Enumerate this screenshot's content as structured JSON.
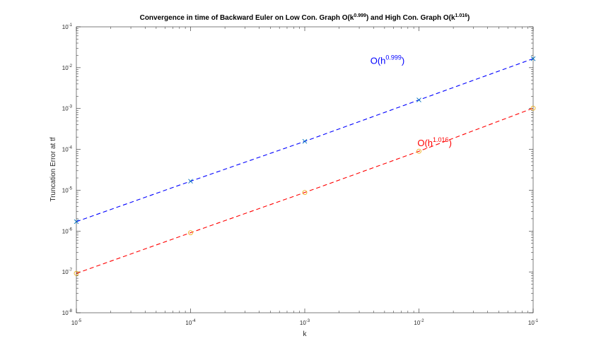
{
  "chart_data": {
    "type": "line",
    "title_prefix": "Convergence in time of Backward Euler on Low Con. Graph O(k",
    "title_exp1": "0.999",
    "title_middle": ") and High Con. Graph O(k",
    "title_exp2": "1.016",
    "title_suffix": ")",
    "xlabel": "k",
    "ylabel": "Truncation Error at tf",
    "xscale": "log",
    "yscale": "log",
    "xlim": [
      1e-05,
      0.1
    ],
    "ylim": [
      1e-08,
      0.1
    ],
    "grid": false,
    "x_ticks": [
      {
        "base": "10",
        "exp": "-5"
      },
      {
        "base": "10",
        "exp": "-4"
      },
      {
        "base": "10",
        "exp": "-3"
      },
      {
        "base": "10",
        "exp": "-2"
      },
      {
        "base": "10",
        "exp": "-1"
      }
    ],
    "y_ticks": [
      {
        "base": "10",
        "exp": "-8"
      },
      {
        "base": "10",
        "exp": "-7"
      },
      {
        "base": "10",
        "exp": "-6"
      },
      {
        "base": "10",
        "exp": "-5"
      },
      {
        "base": "10",
        "exp": "-4"
      },
      {
        "base": "10",
        "exp": "-3"
      },
      {
        "base": "10",
        "exp": "-2"
      },
      {
        "base": "10",
        "exp": "-1"
      }
    ],
    "series": [
      {
        "x": [
          1e-05,
          0.0001,
          0.001,
          0.01,
          0.1
        ],
        "y": [
          1.7e-06,
          1.66e-05,
          0.000157,
          0.00162,
          0.0166
        ],
        "line_color": "#0000ff",
        "marker": "x",
        "marker_color": "#0072bd"
      },
      {
        "x": [
          1e-05,
          0.0001,
          0.001,
          0.01,
          0.1
        ],
        "y": [
          9.2e-08,
          9.1e-07,
          8.8e-06,
          9e-05,
          0.00102
        ],
        "line_color": "#ff0000",
        "marker": "o",
        "marker_color": "#edb120"
      }
    ],
    "annotations": [
      {
        "base": "O(h",
        "exp": "0.999",
        "close": ")",
        "color": "#0000ff",
        "x": 0.00375,
        "y": 0.0125
      },
      {
        "base": "O(h",
        "exp": "1.016",
        "close": ")",
        "color": "#ff0000",
        "x": 0.0097,
        "y": 0.00012
      }
    ]
  }
}
